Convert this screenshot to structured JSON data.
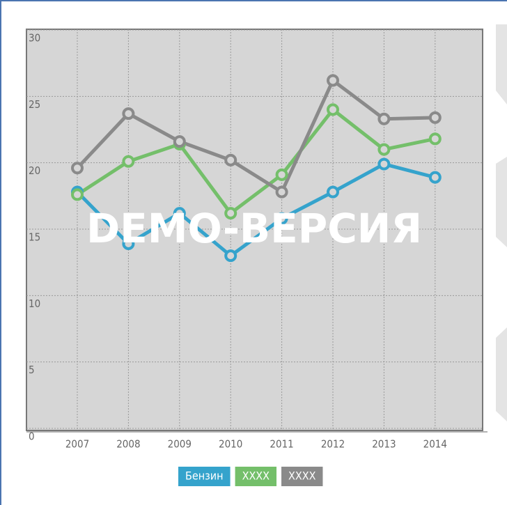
{
  "chart_data": {
    "type": "line",
    "categories": [
      "2007",
      "2008",
      "2009",
      "2010",
      "2011",
      "2012",
      "2013",
      "2014"
    ],
    "series": [
      {
        "name": "Бензин",
        "color": "#35a3cc",
        "values": [
          17.8,
          13.9,
          16.2,
          13.0,
          15.8,
          17.8,
          19.9,
          18.9
        ]
      },
      {
        "name": "XXXX",
        "color": "#74bf6a",
        "values": [
          17.6,
          20.1,
          21.4,
          16.2,
          19.1,
          24.0,
          21.0,
          21.8
        ]
      },
      {
        "name": "XXXX",
        "color": "#8a8a8a",
        "values": [
          19.6,
          23.7,
          21.6,
          20.2,
          17.8,
          26.2,
          23.3,
          23.4
        ]
      }
    ],
    "ylim": [
      0,
      30
    ],
    "yticks": [
      0,
      5,
      10,
      15,
      20,
      25,
      30
    ],
    "grid": true,
    "watermark": "DEMO-ВЕРСИЯ"
  }
}
